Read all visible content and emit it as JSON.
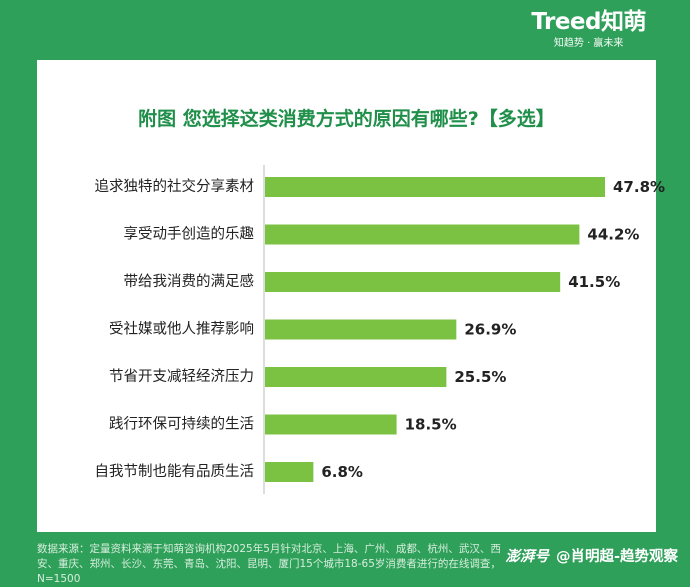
{
  "brand": {
    "logo": "Treed知萌",
    "slogan": "知趋势 · 赢未来"
  },
  "chart_data": {
    "type": "bar",
    "orientation": "horizontal",
    "title": "附图 您选择这类消费方式的原因有哪些?【多选】",
    "categories": [
      "追求独特的社交分享素材",
      "享受动手创造的乐趣",
      "带给我消费的满足感",
      "受社媒或他人推荐影响",
      "节省开支减轻经济压力",
      "践行环保可持续的生活",
      "自我节制也能有品质生活"
    ],
    "values": [
      47.8,
      44.2,
      41.5,
      26.9,
      25.5,
      18.5,
      6.8
    ],
    "value_labels": [
      "47.8%",
      "44.2%",
      "41.5%",
      "26.9%",
      "25.5%",
      "18.5%",
      "6.8%"
    ],
    "xlim": [
      0,
      50
    ],
    "grid": false,
    "bar_color": "#7cc242",
    "axis_color": "#bbbbbb"
  },
  "footer": {
    "source_text": "数据来源：定量资料来源于知萌咨询机构2025年5月针对北京、上海、广州、成都、杭州、武汉、西安、重庆、郑州、长沙、东莞、青岛、沈阳、昆明、厦门15个城市18-65岁消费者进行的在线调查，N=1500"
  },
  "watermark": {
    "brand": "澎湃号",
    "author": "@肖明超-趋势观察"
  }
}
